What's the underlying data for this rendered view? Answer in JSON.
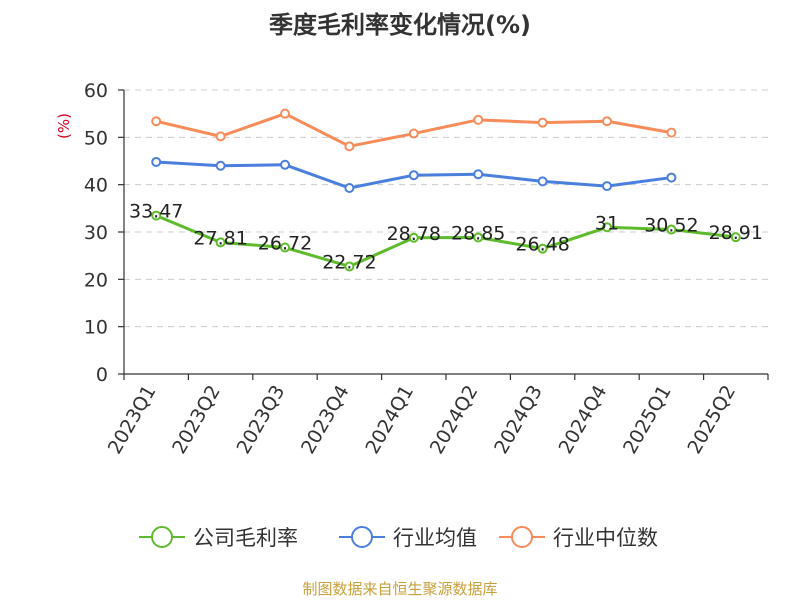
{
  "chart_data": {
    "type": "line",
    "title": "季度毛利率变化情况(%)",
    "ylabel": "(%)",
    "xlabel": "",
    "ylim": [
      0,
      60
    ],
    "yticks": [
      0,
      10,
      20,
      30,
      40,
      50,
      60
    ],
    "grid": true,
    "legend_position": "bottom",
    "categories": [
      "2023Q1",
      "2023Q2",
      "2023Q3",
      "2023Q4",
      "2024Q1",
      "2024Q2",
      "2024Q3",
      "2024Q4",
      "2025Q1",
      "2025Q2"
    ],
    "series": [
      {
        "name": "公司毛利率",
        "color": "#5dbb2c",
        "values": [
          33.47,
          27.81,
          26.72,
          22.72,
          28.78,
          28.85,
          26.48,
          31,
          30.52,
          28.91
        ],
        "labels": [
          "33.47",
          "27.81",
          "26.72",
          "22.72",
          "28.78",
          "28.85",
          "26.48",
          "31",
          "30.52",
          "28.91"
        ]
      },
      {
        "name": "行业均值",
        "color": "#4a7fde",
        "values": [
          44.8,
          44.0,
          44.2,
          39.3,
          42.0,
          42.2,
          40.7,
          39.7,
          41.5,
          null
        ]
      },
      {
        "name": "行业中位数",
        "color": "#f58c5a",
        "values": [
          53.4,
          50.2,
          55.0,
          48.1,
          50.8,
          53.7,
          53.1,
          53.4,
          51.0,
          null
        ]
      }
    ]
  },
  "source": "制图数据来自恒生聚源数据库"
}
